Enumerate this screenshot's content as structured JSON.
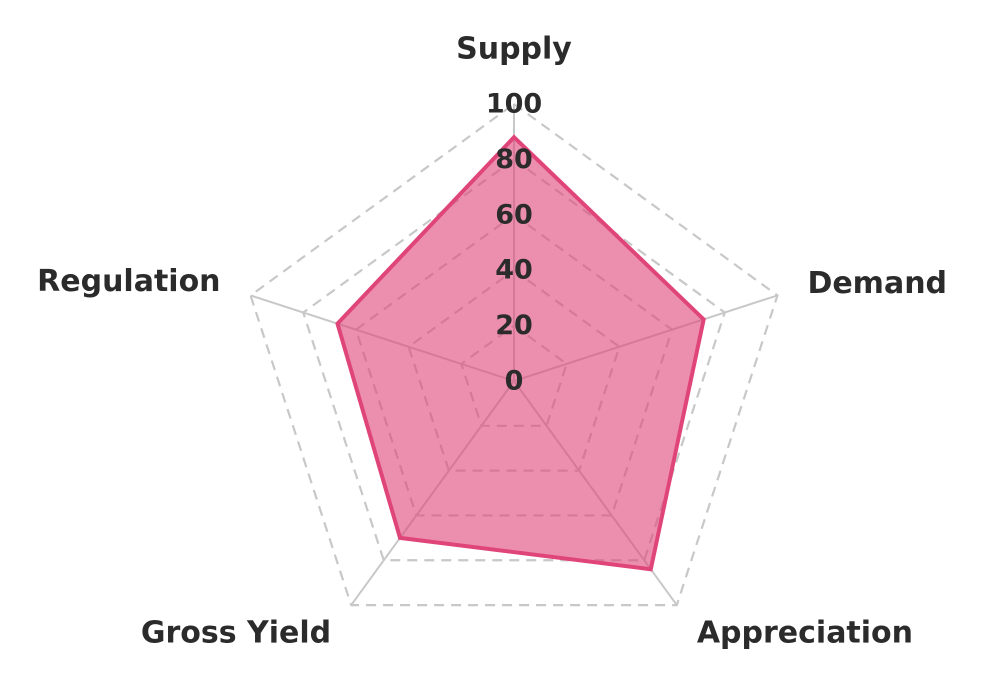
{
  "chart_data": {
    "type": "radar",
    "categories": [
      "Supply",
      "Demand",
      "Appreciation",
      "Gross Yield",
      "Regulation"
    ],
    "series": [
      {
        "values": [
          88,
          72,
          84,
          70,
          67
        ],
        "color": "#e0457a",
        "fill_color": "#e0457a",
        "fill_opacity": 0.6
      }
    ],
    "r_ticks": [
      "0",
      "20",
      "40",
      "60",
      "80",
      "100"
    ],
    "rlim": [
      0,
      100
    ],
    "grid": true,
    "grid_style": "dashed",
    "grid_color": "#c8c8c8"
  }
}
